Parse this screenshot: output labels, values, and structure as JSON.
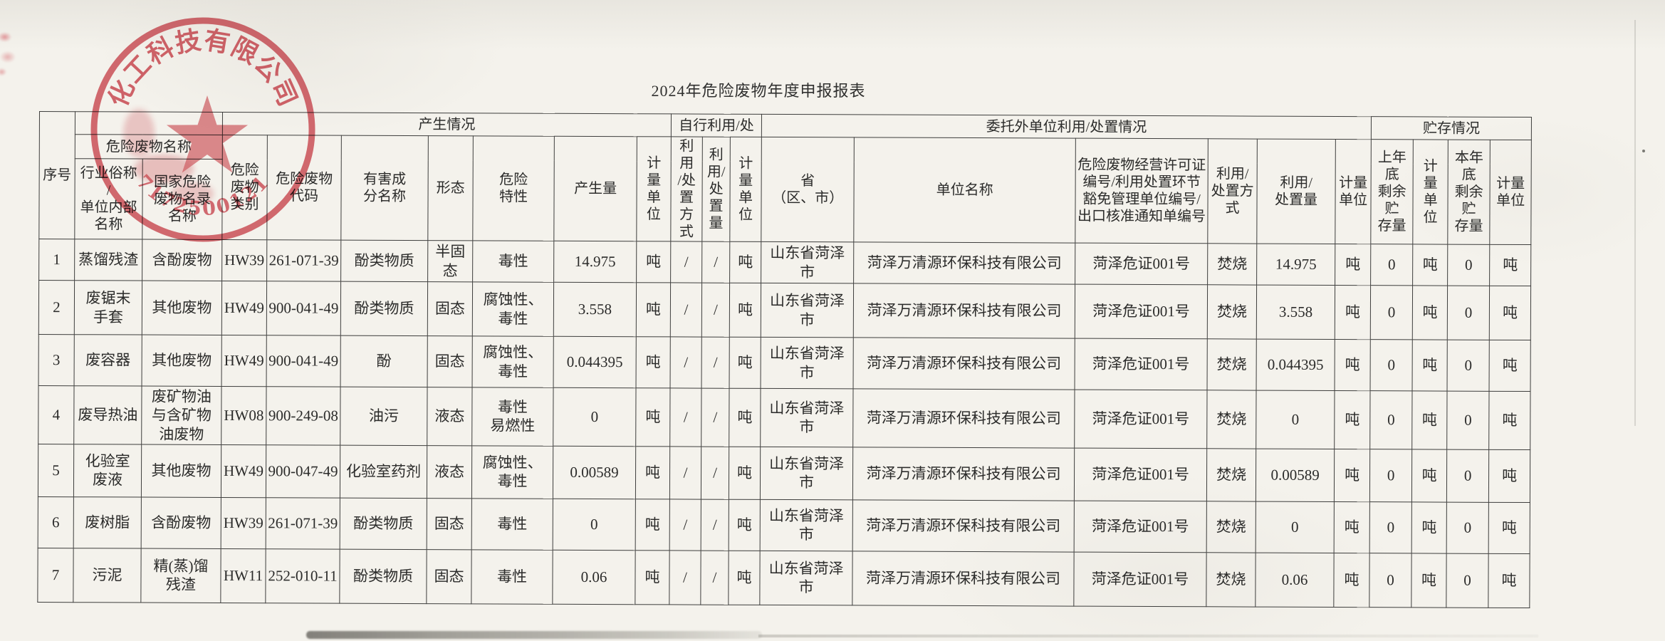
{
  "page": {
    "title": "2024年危险废物年度申报报表"
  },
  "stamp": {
    "arc_text": "化工科技有限公司",
    "serial": "371725001217"
  },
  "table": {
    "name_band": "危险废物名称",
    "bands": {
      "production": "产生情况",
      "self_disposal": "自行利用/处",
      "entrusted": "委托外单位利用/处置情况",
      "storage": "贮存情况"
    },
    "columns": [
      "序号",
      "行业俗称\n/\n单位内部\n名称",
      "国家危险\n废物名录\n名称",
      "危险\n废物\n类别",
      "危险废物\n代码",
      "有害成\n分名称",
      "形态",
      "危险\n特性",
      "产生量",
      "计\n量\n单\n位",
      "利用\n/处\n置\n方式",
      "利用/\n处\n置\n量",
      "计\n量\n单\n位",
      "省\n（区、市）",
      "单位名称",
      "危险废物经营许可证\n编号/利用处置环节\n豁免管理单位编号/\n出口核准通知单编号",
      "利用/\n处置方\n式",
      "利用/\n处置量",
      "计量\n单位",
      "上年\n底\n剩余\n贮\n存量",
      "计\n量\n单\n位",
      "本年\n底\n剩余\n贮\n存量",
      "计量\n单位"
    ],
    "rows": [
      [
        "1",
        "蒸馏残渣",
        "含酚废物",
        "HW39",
        "261-071-39",
        "酚类物质",
        "半固态",
        "毒性",
        "14.975",
        "吨",
        "/",
        "/",
        "吨",
        "山东省菏泽市",
        "菏泽万清源环保科技有限公司",
        "菏泽危证001号",
        "焚烧",
        "14.975",
        "吨",
        "0",
        "吨",
        "0",
        "吨"
      ],
      [
        "2",
        "废锯末\n手套",
        "其他废物",
        "HW49",
        "900-041-49",
        "酚类物质",
        "固态",
        "腐蚀性、\n毒性",
        "3.558",
        "吨",
        "/",
        "/",
        "吨",
        "山东省菏泽市",
        "菏泽万清源环保科技有限公司",
        "菏泽危证001号",
        "焚烧",
        "3.558",
        "吨",
        "0",
        "吨",
        "0",
        "吨"
      ],
      [
        "3",
        "废容器",
        "其他废物",
        "HW49",
        "900-041-49",
        "酚",
        "固态",
        "腐蚀性、\n毒性",
        "0.044395",
        "吨",
        "/",
        "/",
        "吨",
        "山东省菏泽市",
        "菏泽万清源环保科技有限公司",
        "菏泽危证001号",
        "焚烧",
        "0.044395",
        "吨",
        "0",
        "吨",
        "0",
        "吨"
      ],
      [
        "4",
        "废导热油",
        "废矿物油\n与含矿物\n油废物",
        "HW08",
        "900-249-08",
        "油污",
        "液态",
        "毒性\n易燃性",
        "0",
        "吨",
        "/",
        "/",
        "吨",
        "山东省菏泽市",
        "菏泽万清源环保科技有限公司",
        "菏泽危证001号",
        "焚烧",
        "0",
        "吨",
        "0",
        "吨",
        "0",
        "吨"
      ],
      [
        "5",
        "化验室\n废液",
        "其他废物",
        "HW49",
        "900-047-49",
        "化验室药剂",
        "液态",
        "腐蚀性、\n毒性",
        "0.00589",
        "吨",
        "/",
        "/",
        "吨",
        "山东省菏泽市",
        "菏泽万清源环保科技有限公司",
        "菏泽危证001号",
        "焚烧",
        "0.00589",
        "吨",
        "0",
        "吨",
        "0",
        "吨"
      ],
      [
        "6",
        "废树脂",
        "含酚废物",
        "HW39",
        "261-071-39",
        "酚类物质",
        "固态",
        "毒性",
        "0",
        "吨",
        "/",
        "/",
        "吨",
        "山东省菏泽市",
        "菏泽万清源环保科技有限公司",
        "菏泽危证001号",
        "焚烧",
        "0",
        "吨",
        "0",
        "吨",
        "0",
        "吨"
      ],
      [
        "7",
        "污泥",
        "精(蒸)馏\n残渣",
        "HW11",
        "252-010-11",
        "酚类物质",
        "固态",
        "毒性",
        "0.06",
        "吨",
        "/",
        "/",
        "吨",
        "山东省菏泽市",
        "菏泽万清源环保科技有限公司",
        "菏泽危证001号",
        "焚烧",
        "0.06",
        "吨",
        "0",
        "吨",
        "0",
        "吨"
      ]
    ]
  }
}
